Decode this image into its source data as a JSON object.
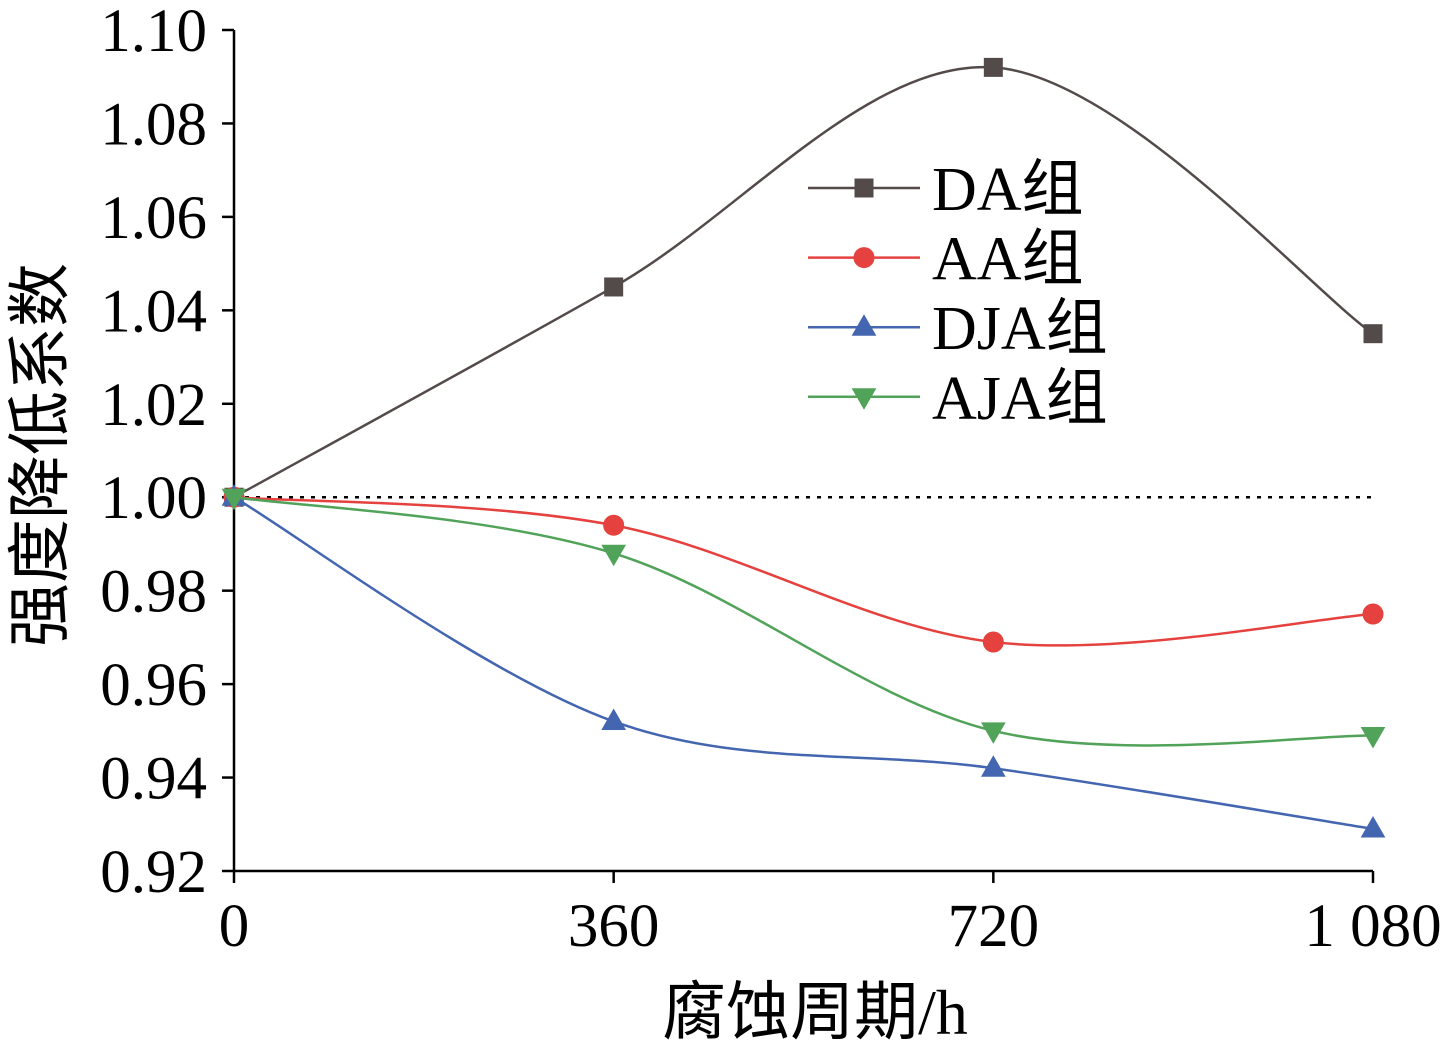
{
  "chart_data": {
    "type": "line",
    "xlabel": "腐蚀周期/h",
    "ylabel": "强度降低系数",
    "x": [
      0,
      360,
      720,
      1080
    ],
    "xlim": [
      0,
      1080
    ],
    "ylim": [
      0.92,
      1.1
    ],
    "x_ticks": [
      0,
      360,
      720,
      1080
    ],
    "x_tick_labels": [
      "0",
      "360",
      "720",
      "1 080"
    ],
    "y_ticks": [
      0.92,
      0.94,
      0.96,
      0.98,
      1.0,
      1.02,
      1.04,
      1.06,
      1.08,
      1.1
    ],
    "y_tick_labels": [
      "0.92",
      "0.94",
      "0.96",
      "0.98",
      "1.00",
      "1.02",
      "1.04",
      "1.06",
      "1.08",
      "1.10"
    ],
    "grid": false,
    "smooth": true,
    "legend_position": "top-center",
    "reference_line": {
      "y": 1.0,
      "style": "dotted",
      "color": "#000000"
    },
    "series": [
      {
        "name": "DA组",
        "marker": "square",
        "color": "#534b49",
        "values": [
          1.0,
          1.045,
          1.092,
          1.035
        ]
      },
      {
        "name": "AA组",
        "marker": "circle",
        "color": "#e5423f",
        "values": [
          1.0,
          0.994,
          0.969,
          0.975
        ]
      },
      {
        "name": "DJA组",
        "marker": "triangle-up",
        "color": "#4466b0",
        "values": [
          1.0,
          0.952,
          0.942,
          0.929
        ]
      },
      {
        "name": "AJA组",
        "marker": "triangle-down",
        "color": "#52a35a",
        "values": [
          1.0,
          0.988,
          0.95,
          0.949
        ]
      }
    ]
  }
}
